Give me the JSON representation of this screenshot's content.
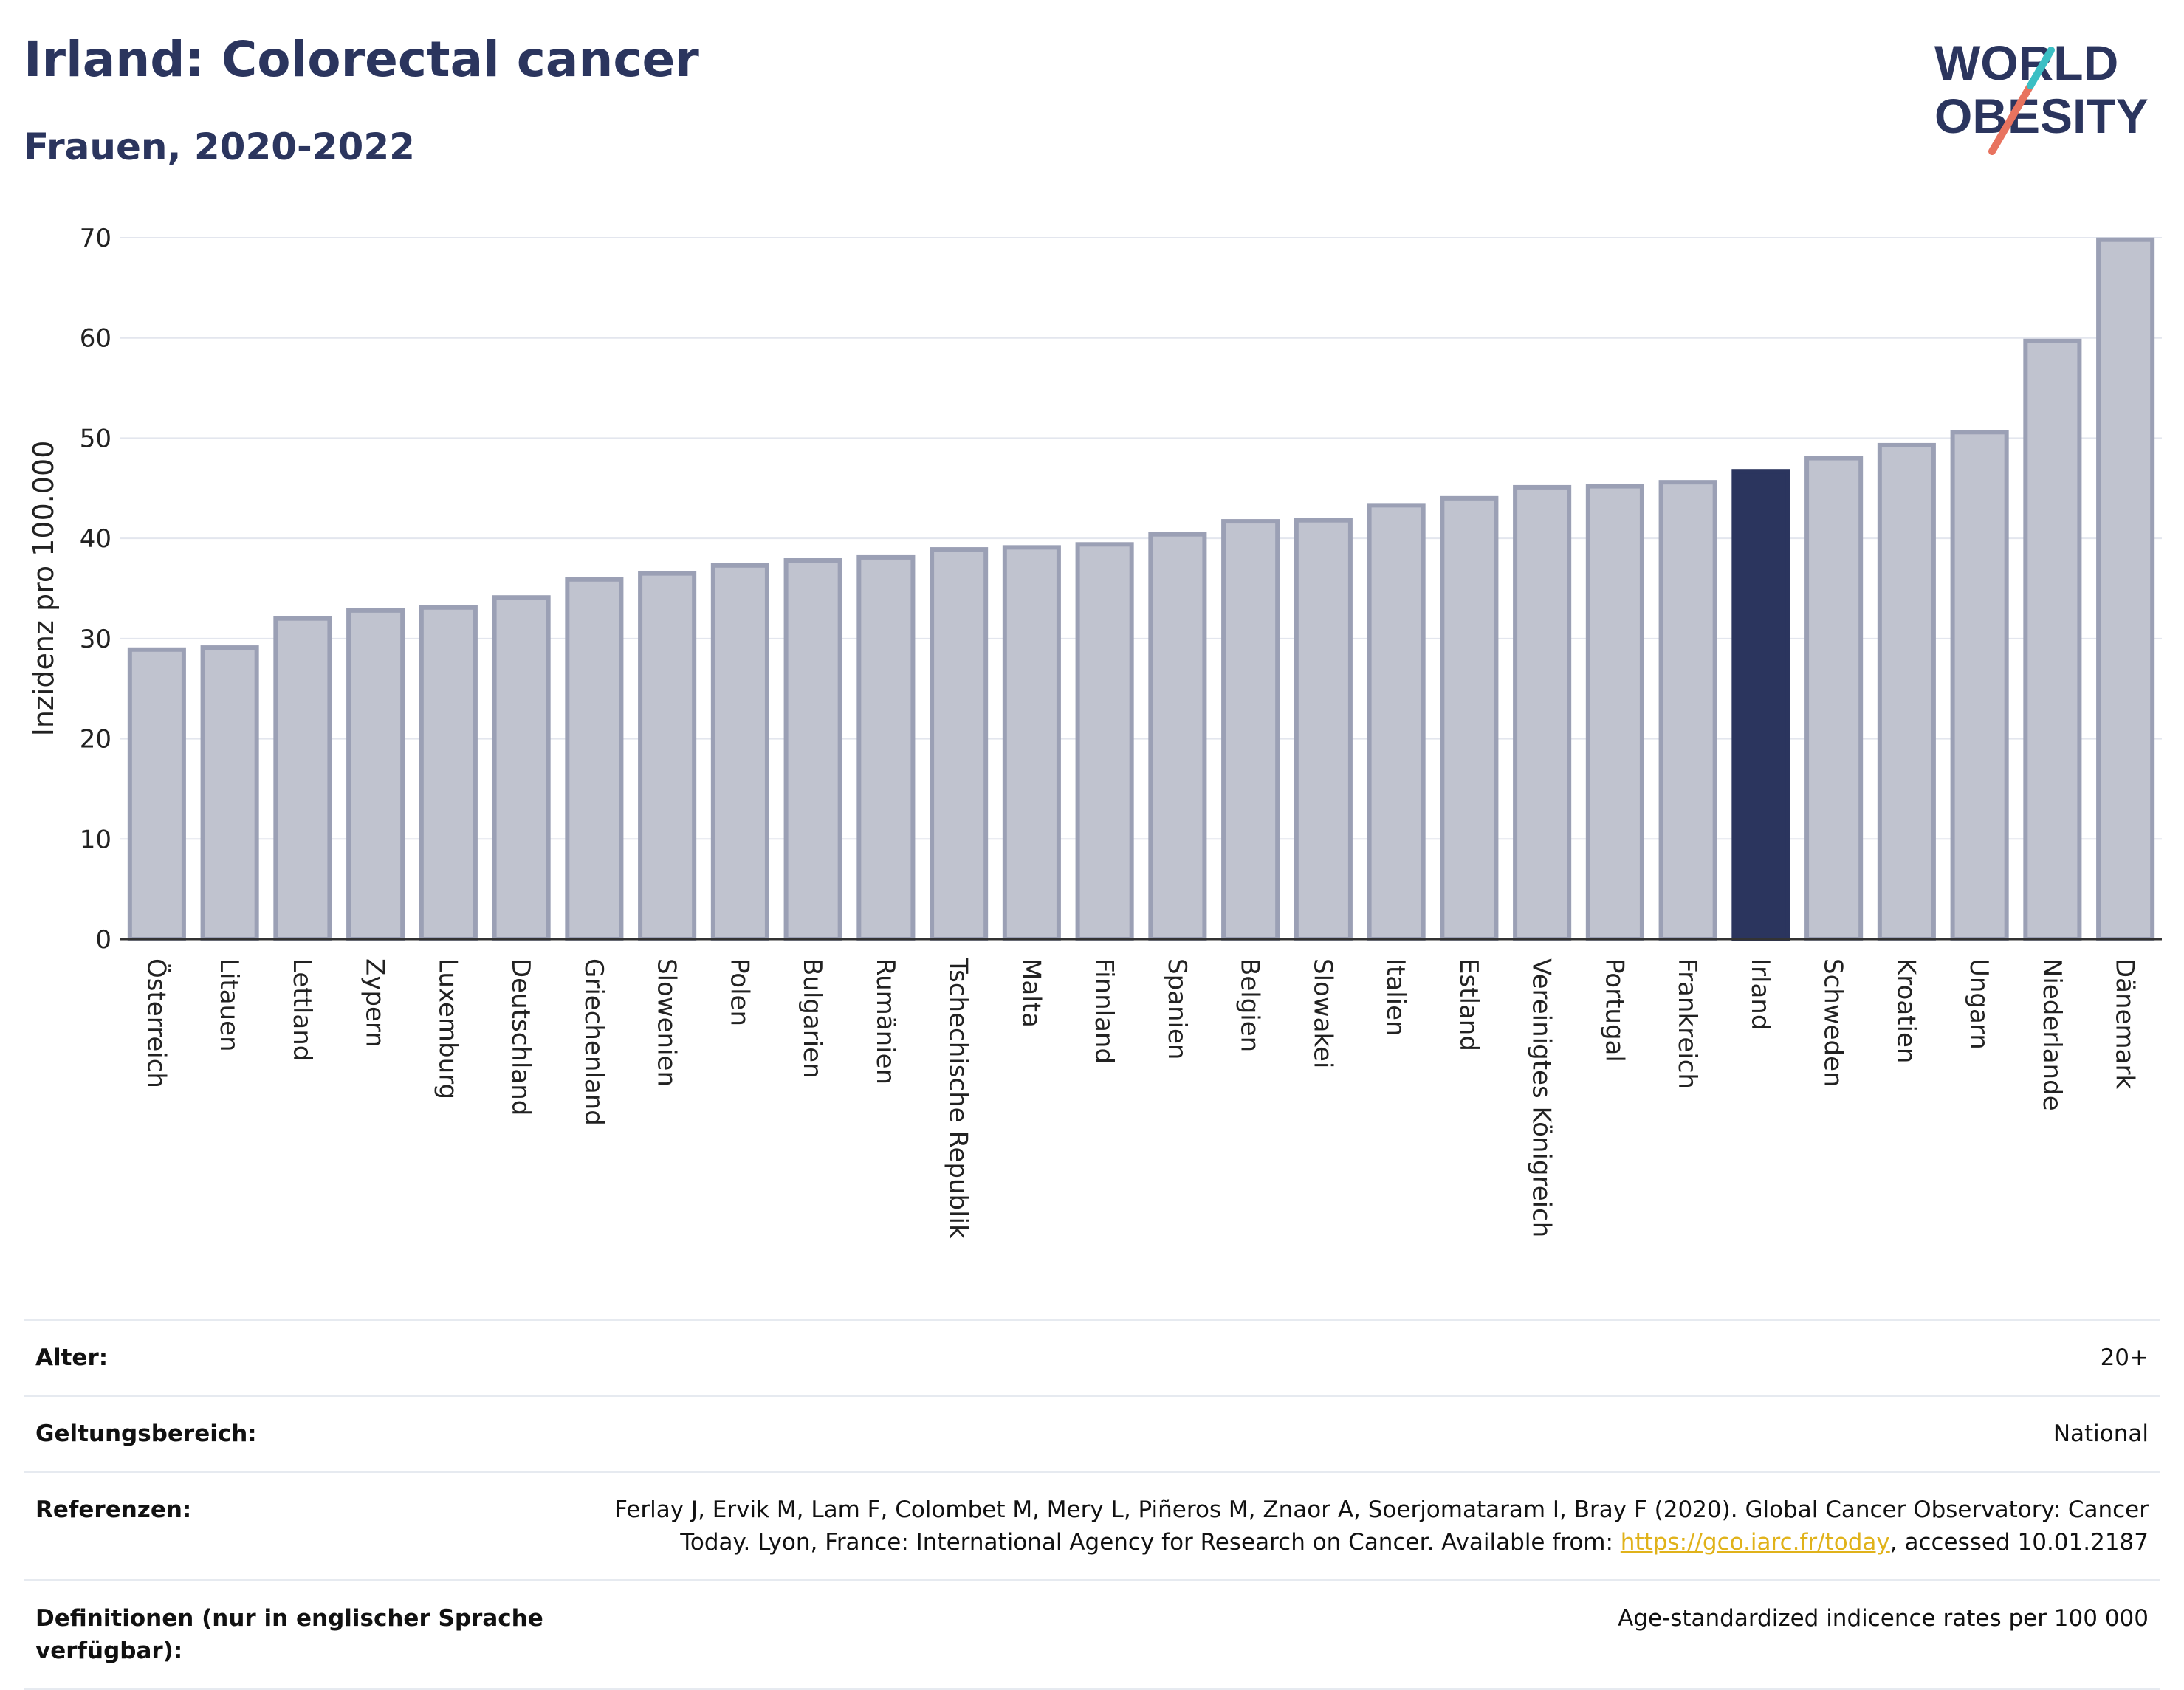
{
  "header": {
    "title": "Irland: Colorectal cancer",
    "subtitle": "Frauen, 2020-2022"
  },
  "logo": {
    "line1": "WORLD",
    "line2": "OBESITY",
    "colors": {
      "text": "#2b355e",
      "slash_teal": "#3bbfc4",
      "slash_coral": "#e8735f"
    }
  },
  "chart_data": {
    "type": "bar",
    "ylabel": "Inzidenz pro 100.000",
    "ylim": [
      0,
      70
    ],
    "yticks": [
      0,
      10,
      20,
      30,
      40,
      50,
      60,
      70
    ],
    "grid": true,
    "highlight": "Irland",
    "colors": {
      "bar": "#c0c3cf",
      "bar_edge": "#9ba0b5",
      "highlight": "#2b355e"
    },
    "categories": [
      "Österreich",
      "Litauen",
      "Lettland",
      "Zypern",
      "Luxemburg",
      "Deutschland",
      "Griechenland",
      "Slowenien",
      "Polen",
      "Bulgarien",
      "Rumänien",
      "Tschechische Republik",
      "Malta",
      "Finnland",
      "Spanien",
      "Belgien",
      "Slowakei",
      "Italien",
      "Estland",
      "Vereinigtes Königreich",
      "Portugal",
      "Frankreich",
      "Irland",
      "Schweden",
      "Kroatien",
      "Ungarn",
      "Niederlande",
      "Dänemark"
    ],
    "values": [
      28.9,
      29.1,
      32.0,
      32.8,
      33.1,
      34.1,
      35.9,
      36.5,
      37.3,
      37.8,
      38.1,
      38.9,
      39.1,
      39.4,
      40.4,
      41.7,
      41.8,
      43.3,
      44.0,
      45.1,
      45.2,
      45.6,
      46.7,
      48.0,
      49.3,
      50.6,
      59.7,
      69.8
    ]
  },
  "meta": {
    "rows": [
      {
        "label": "Alter:",
        "value": "20+"
      },
      {
        "label": "Geltungsbereich:",
        "value": "National"
      },
      {
        "label": "Referenzen:",
        "value_pre": "Ferlay J, Ervik M, Lam F, Colombet M, Mery L, Piñeros M, Znaor A, Soerjomataram I, Bray F (2020). Global Cancer Observatory: Cancer Today. Lyon, France: International Agency for Research on Cancer. Available from: ",
        "link": "https://gco.iarc.fr/today",
        "value_post": ", accessed 10.01.2187"
      },
      {
        "label": "Definitionen (nur in englischer Sprache verfügbar):",
        "value": "Age-standardized indicence rates per 100 000"
      }
    ]
  }
}
